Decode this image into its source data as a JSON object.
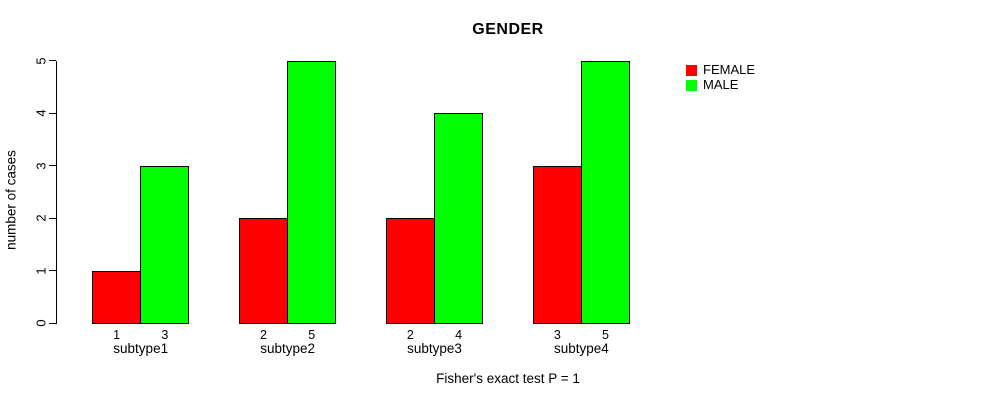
{
  "chart_data": {
    "type": "bar",
    "title": "GENDER",
    "xlabel": "",
    "ylabel": "number of cases",
    "caption": "Fisher's exact test P = 1",
    "categories": [
      "subtype1",
      "subtype2",
      "subtype3",
      "subtype4"
    ],
    "series": [
      {
        "name": "FEMALE",
        "color": "#ff0000",
        "values": [
          1,
          2,
          2,
          3
        ]
      },
      {
        "name": "MALE",
        "color": "#00ff00",
        "values": [
          3,
          5,
          4,
          5
        ]
      }
    ],
    "bar_value_labels": [
      [
        "1",
        "3"
      ],
      [
        "2",
        "5"
      ],
      [
        "2",
        "4"
      ],
      [
        "3",
        "5"
      ]
    ],
    "ylim": [
      0,
      5
    ],
    "yticks": [
      "0",
      "1",
      "2",
      "3",
      "4",
      "5"
    ],
    "grid": false,
    "legend_position": "top-right-outside-plot",
    "colors": {
      "axis": "#000000",
      "background": "#ffffff"
    }
  }
}
